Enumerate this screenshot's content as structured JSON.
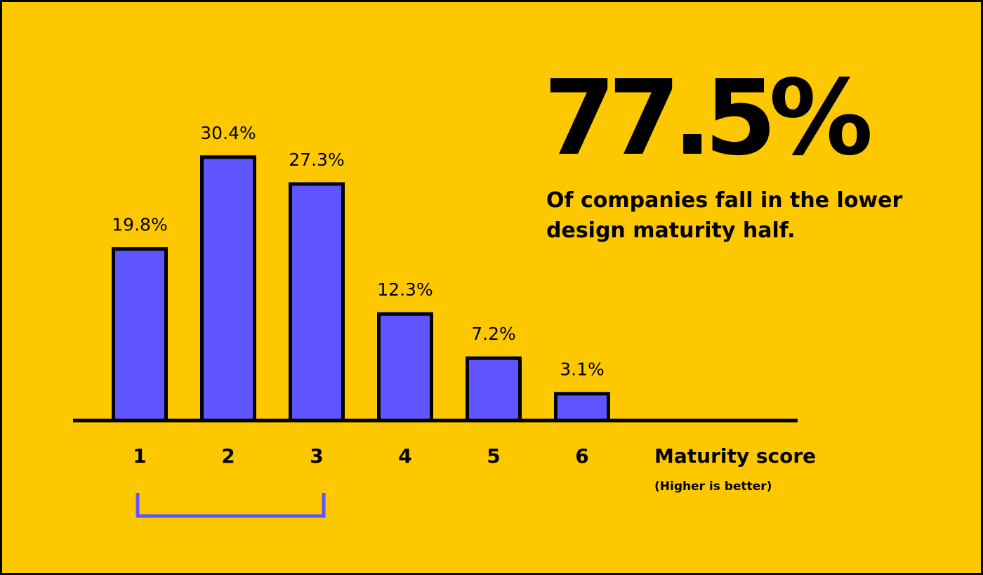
{
  "headline": {
    "stat": "77.5%",
    "caption": "Of companies fall in the lower design maturity half."
  },
  "colors": {
    "background": "#FEC800",
    "bar_fill": "#6054FF",
    "outline": "#000000",
    "bracket": "#6054FF"
  },
  "chart_data": {
    "type": "bar",
    "categories": [
      "1",
      "2",
      "3",
      "4",
      "5",
      "6"
    ],
    "values": [
      19.8,
      30.4,
      27.3,
      12.3,
      7.2,
      3.1
    ],
    "value_labels": [
      "19.8%",
      "30.4%",
      "27.3%",
      "12.3%",
      "7.2%",
      "3.1%"
    ],
    "title": "",
    "xlabel": "Maturity score",
    "xlabel_note": "(Higher is better)",
    "ylabel": "",
    "ylim": [
      0,
      35
    ],
    "grid": false,
    "legend": "none",
    "highlight": {
      "type": "bracket",
      "from_category": "1",
      "to_category": "3"
    }
  }
}
